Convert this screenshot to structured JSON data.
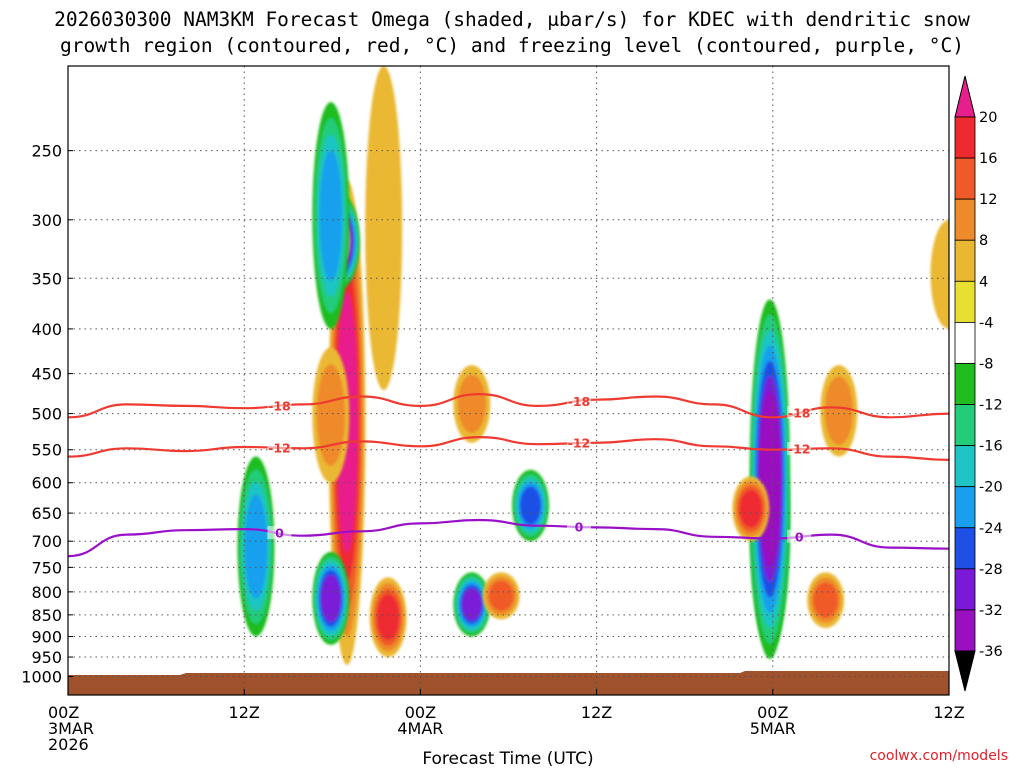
{
  "chart_data": {
    "type": "heatmap",
    "title_line1": "2026030300 NAM3KM Forecast Omega (shaded, μbar/s) for KDEC with dendritic snow",
    "title_line2": "growth region (contoured, red, °C) and freezing level (contoured, purple, °C)",
    "xlabel": "Forecast Time (UTC)",
    "ylabel": "",
    "x_unit": "forecast hour",
    "xlim": [
      0,
      60
    ],
    "ylim_hPa": [
      1050,
      200
    ],
    "y_ticks": [
      250,
      300,
      350,
      400,
      450,
      500,
      550,
      600,
      650,
      700,
      750,
      800,
      850,
      900,
      950,
      1000
    ],
    "x_ticks": [
      {
        "hour": 0,
        "lines": [
          "00Z",
          "3MAR",
          "2026"
        ]
      },
      {
        "hour": 12,
        "lines": [
          "12Z"
        ]
      },
      {
        "hour": 24,
        "lines": [
          "00Z",
          "4MAR"
        ]
      },
      {
        "hour": 36,
        "lines": [
          "12Z"
        ]
      },
      {
        "hour": 48,
        "lines": [
          "00Z",
          "5MAR"
        ]
      },
      {
        "hour": 60,
        "lines": [
          "12Z"
        ]
      }
    ],
    "colorbar": {
      "labels": [
        "20",
        "16",
        "12",
        "8",
        "4",
        "-4",
        "-8",
        "-12",
        "-16",
        "-20",
        "-24",
        "-28",
        "-32",
        "-36"
      ],
      "colors": [
        "#e81e8c",
        "#ee2a30",
        "#f05a28",
        "#ee8a2a",
        "#eab830",
        "#e8e030",
        "#ffffff",
        "#1fbd1f",
        "#22cc78",
        "#1fc4c4",
        "#18a0ee",
        "#1e50e6",
        "#7a1ad8",
        "#9a10c0",
        "#a8a8a8",
        "#000000"
      ]
    },
    "isotherm_contours": [
      {
        "label": "-18",
        "color": "#ee3a30",
        "pressure": [
          505,
          488,
          490,
          493,
          488,
          478,
          490,
          475,
          490,
          482,
          478,
          488,
          505,
          492,
          505,
          500
        ]
      },
      {
        "label": "-12",
        "color": "#ee3a30",
        "pressure": [
          560,
          548,
          552,
          546,
          548,
          538,
          545,
          532,
          542,
          540,
          535,
          545,
          550,
          548,
          560,
          565
        ]
      },
      {
        "label": "0",
        "color": "#9a10c8",
        "pressure": [
          728,
          688,
          680,
          678,
          690,
          682,
          668,
          662,
          672,
          675,
          678,
          692,
          695,
          688,
          712,
          714
        ]
      }
    ],
    "omega_cells": [
      {
        "hour": 19,
        "p_top": 270,
        "p_bot": 970,
        "value": 20
      },
      {
        "hour": 47.8,
        "p_top": 485,
        "p_bot": 935,
        "value": -36
      },
      {
        "hour": 47.8,
        "p_top": 370,
        "p_bot": 955,
        "value": -28
      },
      {
        "hour": 18.5,
        "p_top": 280,
        "p_bot": 360,
        "value": -32
      },
      {
        "hour": 17.9,
        "p_top": 220,
        "p_bot": 400,
        "value": -16
      },
      {
        "hour": 17.9,
        "p_top": 720,
        "p_bot": 920,
        "value": -24
      },
      {
        "hour": 12.8,
        "p_top": 560,
        "p_bot": 900,
        "value": -16
      },
      {
        "hour": 27.5,
        "p_top": 760,
        "p_bot": 900,
        "value": -24
      },
      {
        "hour": 31.5,
        "p_top": 580,
        "p_bot": 700,
        "value": -20
      },
      {
        "hour": 21.8,
        "p_top": 770,
        "p_bot": 950,
        "value": 16
      },
      {
        "hour": 29.5,
        "p_top": 760,
        "p_bot": 860,
        "value": 12
      },
      {
        "hour": 46.5,
        "p_top": 590,
        "p_bot": 700,
        "value": 16
      },
      {
        "hour": 51.6,
        "p_top": 760,
        "p_bot": 880,
        "value": 12
      },
      {
        "hour": 17.9,
        "p_top": 420,
        "p_bot": 600,
        "value": 8
      },
      {
        "hour": 27.5,
        "p_top": 440,
        "p_bot": 540,
        "value": 8
      },
      {
        "hour": 52.5,
        "p_top": 440,
        "p_bot": 560,
        "value": 8
      },
      {
        "hour": 21.5,
        "p_top": 200,
        "p_bot": 470,
        "value": 4
      },
      {
        "hour": 60,
        "p_top": 300,
        "p_bot": 400,
        "value": 4
      }
    ]
  },
  "footer": {
    "credit": "coolwx.com/models"
  }
}
